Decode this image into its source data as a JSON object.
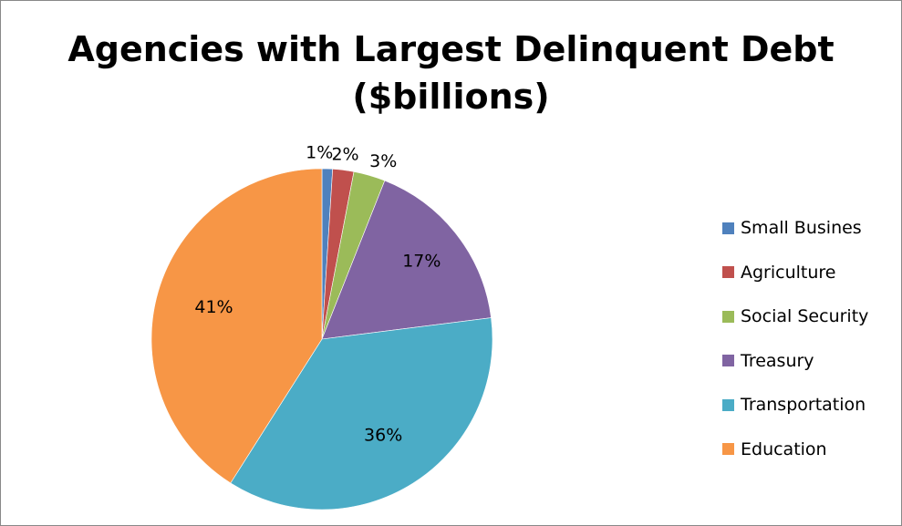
{
  "chart_data": {
    "type": "pie",
    "title_lines": [
      "Agencies with Largest Delinquent Debt",
      "($billions)"
    ],
    "categories": [
      "Small Busines",
      "Agriculture",
      "Social Security",
      "Treasury",
      "Transportation",
      "Education"
    ],
    "values": [
      1,
      2,
      3,
      17,
      36,
      41
    ],
    "data_labels": [
      "1%",
      "2%",
      "3%",
      "17%",
      "36%",
      "41%"
    ],
    "colors": [
      "#4F81BD",
      "#C0504D",
      "#9BBB59",
      "#8064A2",
      "#4BACC6",
      "#F79646"
    ],
    "legend_position": "right"
  }
}
